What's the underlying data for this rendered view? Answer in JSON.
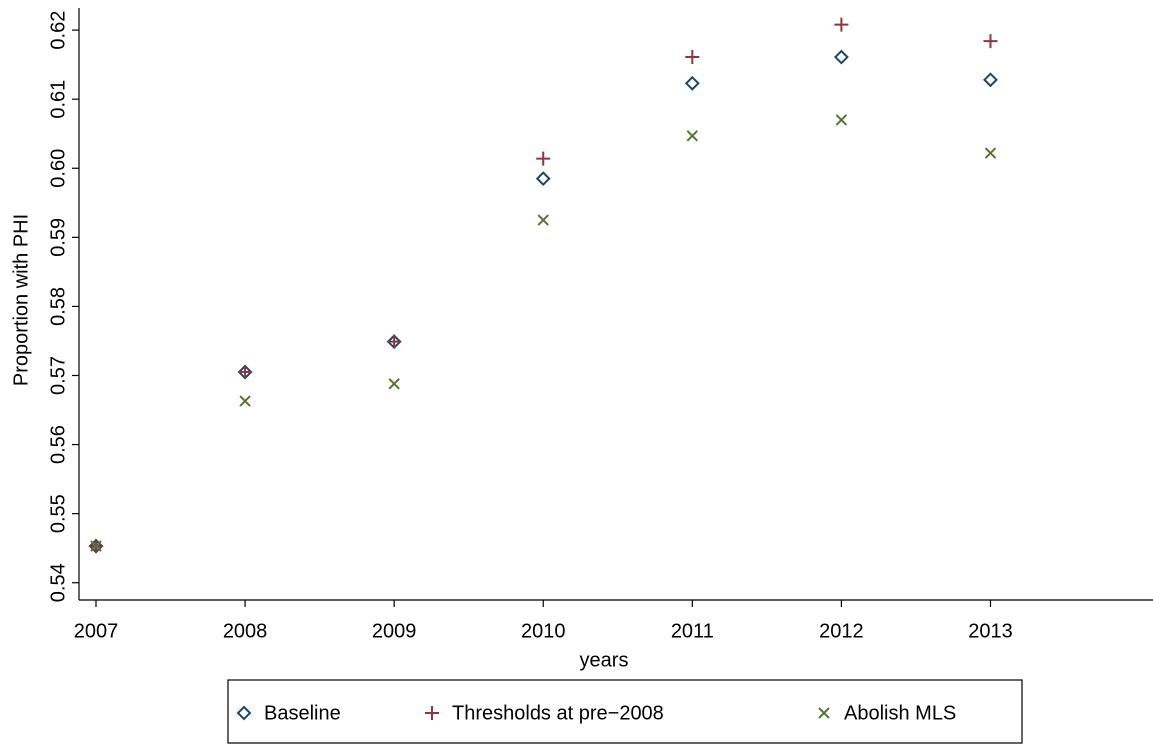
{
  "chart_data": {
    "type": "scatter",
    "x_label": "years",
    "y_label": "Proportion with PHI",
    "x": [
      2007,
      2008,
      2009,
      2010,
      2011,
      2012,
      2013
    ],
    "series": [
      {
        "name": "Baseline",
        "color": "#1a476f",
        "marker": "diamond",
        "values": [
          0.5453,
          0.5705,
          0.5749,
          0.5985,
          0.6123,
          0.6161,
          0.6128
        ]
      },
      {
        "name": "Thresholds at pre−2008",
        "color": "#90353b",
        "marker": "plus",
        "values": [
          0.5453,
          0.5705,
          0.5749,
          0.6014,
          0.6161,
          0.6208,
          0.6184
        ]
      },
      {
        "name": "Abolish MLS",
        "color": "#55752f",
        "marker": "cross",
        "values": [
          0.5453,
          0.5663,
          0.5688,
          0.5925,
          0.6047,
          0.607,
          0.6022
        ]
      }
    ],
    "xlim": [
      2006.886,
      2014.07
    ],
    "ylim": [
      0.5375,
      0.6232
    ],
    "xticks": [
      2007,
      2008,
      2009,
      2010,
      2011,
      2012,
      2013
    ],
    "yticks": [
      0.54,
      0.55,
      0.56,
      0.57,
      0.58,
      0.59,
      {
        "value": 0.6,
        "label": "0.60"
      },
      0.61,
      0.62
    ],
    "legend": "bottom"
  }
}
